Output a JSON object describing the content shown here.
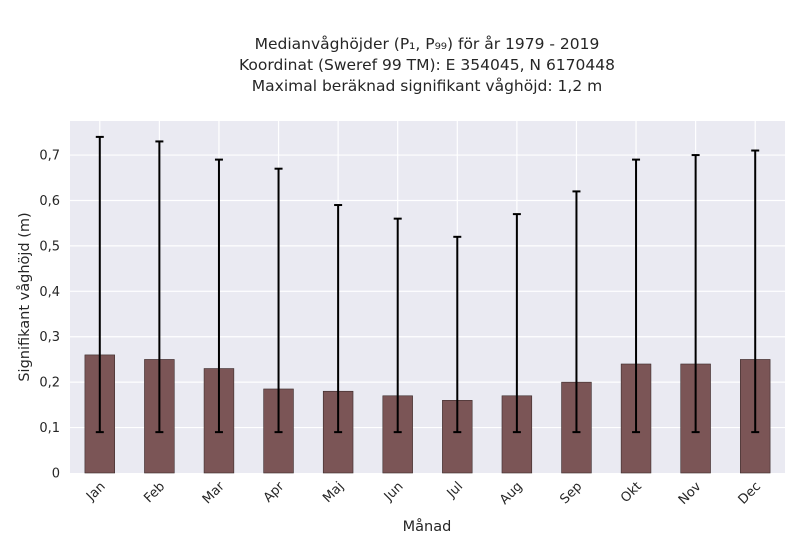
{
  "chart_data": {
    "type": "bar",
    "title_lines": [
      "Medianvåghöjder (P₁, P₉₉) för år 1979 - 2019",
      "Koordinat (Sweref 99 TM): E 354045, N 6170448",
      "Maximal beräknad signifikant våghöjd: 1,2 m"
    ],
    "xlabel": "Månad",
    "ylabel": "Signifikant våghöjd (m)",
    "categories": [
      "Jan",
      "Feb",
      "Mar",
      "Apr",
      "Maj",
      "Jun",
      "Jul",
      "Aug",
      "Sep",
      "Okt",
      "Nov",
      "Dec"
    ],
    "values": [
      0.26,
      0.25,
      0.23,
      0.185,
      0.18,
      0.17,
      0.16,
      0.17,
      0.2,
      0.24,
      0.24,
      0.25
    ],
    "p1": [
      0.09,
      0.09,
      0.09,
      0.09,
      0.09,
      0.09,
      0.09,
      0.09,
      0.09,
      0.09,
      0.09,
      0.09
    ],
    "p99": [
      0.74,
      0.73,
      0.69,
      0.67,
      0.59,
      0.56,
      0.52,
      0.57,
      0.62,
      0.69,
      0.7,
      0.71
    ],
    "ylim": [
      0,
      0.775
    ],
    "yticks": [
      0,
      0.1,
      0.2,
      0.3,
      0.4,
      0.5,
      0.6,
      0.7
    ],
    "ytick_labels": [
      "0",
      "0,1",
      "0,2",
      "0,3",
      "0,4",
      "0,5",
      "0,6",
      "0,7"
    ],
    "grid": true,
    "colors": {
      "bar": "#7b5556",
      "error": "#000000",
      "background": "#eaeaf2",
      "grid": "#ffffff"
    }
  }
}
